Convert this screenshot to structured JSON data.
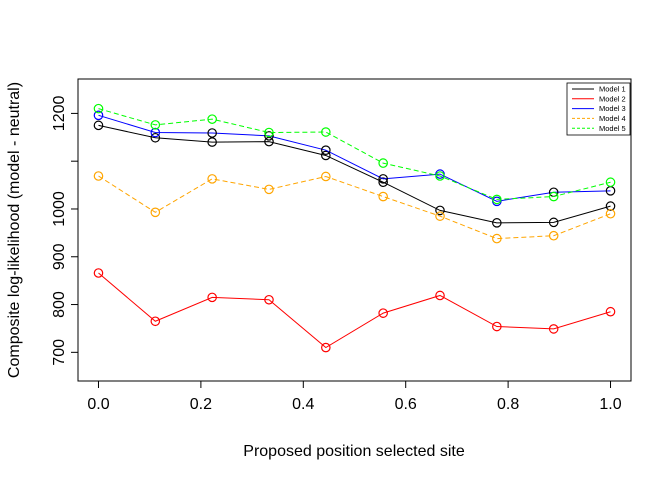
{
  "chart_data": {
    "type": "line",
    "title": "",
    "xlabel": "Proposed position selected site",
    "ylabel": "Composite log-likelihood (model - neutral)",
    "xlim": [
      -0.04,
      1.04
    ],
    "ylim": [
      640,
      1272
    ],
    "xticks": [
      0.0,
      0.2,
      0.4,
      0.6,
      0.8,
      1.0
    ],
    "xtick_labels": [
      "0.0",
      "0.2",
      "0.4",
      "0.6",
      "0.8",
      "1.0"
    ],
    "yticks": [
      700,
      800,
      900,
      1000,
      1100,
      1200
    ],
    "ytick_labels": [
      "700",
      "800",
      "900",
      "1000",
      "",
      "1200"
    ],
    "grid": false,
    "legend_position": "top-right",
    "x": [
      0.0,
      0.111,
      0.222,
      0.333,
      0.444,
      0.556,
      0.667,
      0.778,
      0.889,
      1.0
    ],
    "series": [
      {
        "name": "Model 1",
        "color": "#000000",
        "dash": "solid",
        "marker_color": "#000000",
        "values": [
          1175,
          1149,
          1140,
          1141,
          1112,
          1056,
          997,
          971,
          972,
          1006
        ]
      },
      {
        "name": "Model 2",
        "color": "#FF0000",
        "dash": "solid",
        "marker_color": "#FF0000",
        "values": [
          866,
          765,
          815,
          810,
          710,
          782,
          819,
          754,
          749,
          785
        ]
      },
      {
        "name": "Model 3",
        "color": "#000000",
        "dash": "solid",
        "marker_color": "#000000",
        "values": [
          1196,
          1160,
          1159,
          1153,
          1123,
          1063,
          1073,
          1016,
          1035,
          1038
        ],
        "line_color": "#0000FF",
        "marker_stroke": "#000000",
        "marker_stroke_alt": {
          "indices": [
            0,
            1,
            6,
            7
          ],
          "color": "#0000FF"
        }
      },
      {
        "name": "Model 4",
        "color": "#FFA500",
        "dash": "dashed",
        "marker_color": "#FFA500",
        "values": [
          1069,
          993,
          1063,
          1041,
          1068,
          1026,
          985,
          938,
          944,
          990
        ]
      },
      {
        "name": "Model 5",
        "color": "#00FF00",
        "dash": "dashed",
        "marker_color": "#00FF00",
        "values": [
          1210,
          1176,
          1188,
          1160,
          1161,
          1096,
          1069,
          1020,
          1026,
          1056
        ]
      }
    ]
  }
}
